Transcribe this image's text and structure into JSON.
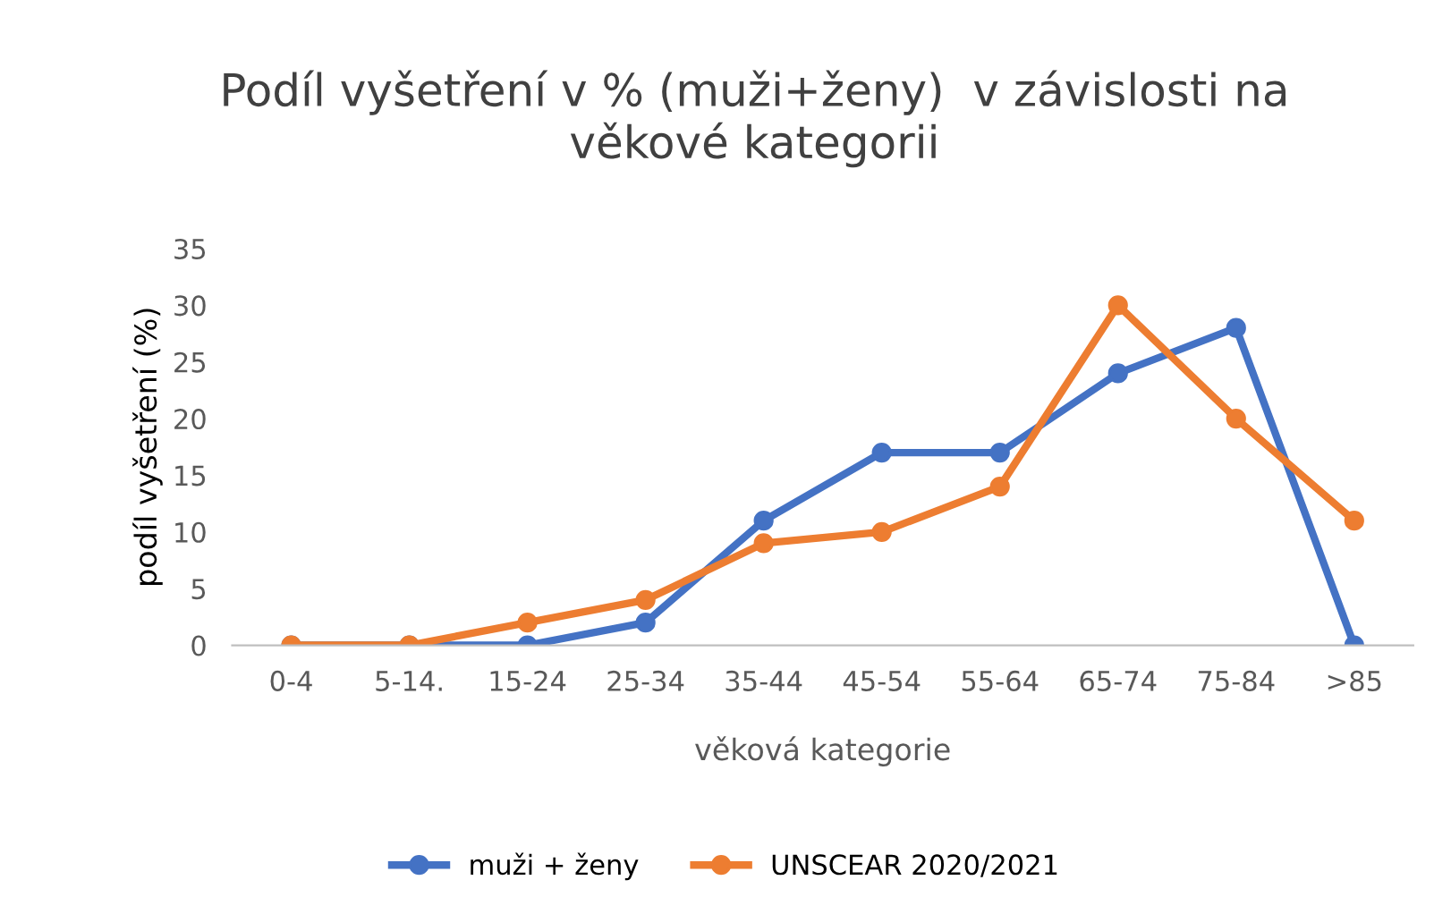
{
  "chart_data": {
    "type": "line",
    "title": "Podíl vyšetření v % (muži+ženy)  v závislosti na\nvěkové kategorii",
    "xlabel": "věková kategorie",
    "ylabel": "podíl vyšetření (%)",
    "categories": [
      "0-4",
      "5-14.",
      "15-24",
      "25-34",
      "35-44",
      "45-54",
      "55-64",
      "65-74",
      "75-84",
      ">85"
    ],
    "series": [
      {
        "name": "muži + ženy",
        "color": "#4472c4",
        "values": [
          0,
          0,
          0,
          2,
          11,
          17,
          17,
          24,
          28,
          0
        ]
      },
      {
        "name": "UNSCEAR 2020/2021",
        "color": "#ed7d31",
        "values": [
          0,
          0,
          2,
          4,
          9,
          10,
          14,
          30,
          20,
          11
        ]
      }
    ],
    "ylim": [
      0,
      35
    ],
    "yticks": [
      0,
      5,
      10,
      15,
      20,
      25,
      30,
      35
    ],
    "grid": false,
    "legend": "bottom",
    "marker": "circle",
    "line_style": "solid"
  }
}
